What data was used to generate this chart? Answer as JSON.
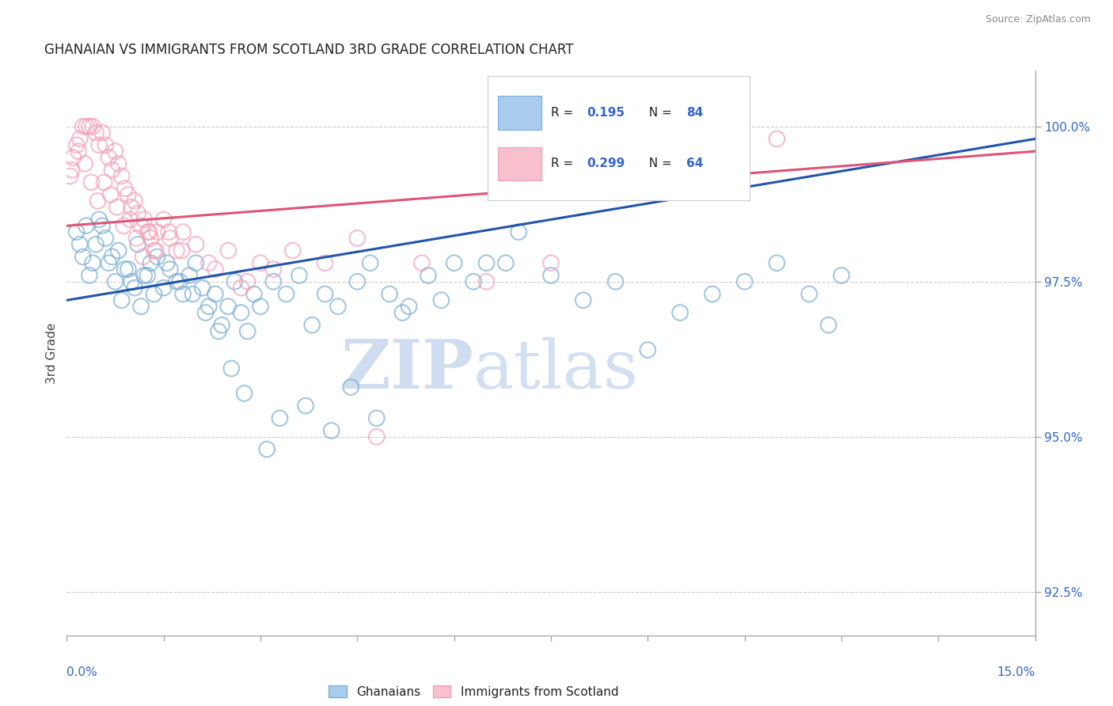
{
  "title": "GHANAIAN VS IMMIGRANTS FROM SCOTLAND 3RD GRADE CORRELATION CHART",
  "source_text": "Source: ZipAtlas.com",
  "ylabel": "3rd Grade",
  "xmin": 0.0,
  "xmax": 15.0,
  "ymin": 91.8,
  "ymax": 100.9,
  "legend_labels": [
    "Ghanaians",
    "Immigrants from Scotland"
  ],
  "blue_color": "#7bafd4",
  "pink_color": "#f4a0b8",
  "blue_line_color": "#2255aa",
  "pink_line_color": "#dd5577",
  "label_color": "#3366cc",
  "blue_scatter_x": [
    0.2,
    0.3,
    0.4,
    0.5,
    0.6,
    0.7,
    0.8,
    0.9,
    1.0,
    1.1,
    1.2,
    1.3,
    1.4,
    1.5,
    1.6,
    1.7,
    1.8,
    1.9,
    2.0,
    2.1,
    2.2,
    2.3,
    2.4,
    2.5,
    2.6,
    2.7,
    2.8,
    2.9,
    3.0,
    3.2,
    3.4,
    3.6,
    3.8,
    4.0,
    4.2,
    4.5,
    4.7,
    5.0,
    5.3,
    5.6,
    6.0,
    6.3,
    6.5,
    6.8,
    7.0,
    7.5,
    8.0,
    8.5,
    9.0,
    9.5,
    10.0,
    10.5,
    11.0,
    11.5,
    12.0,
    0.15,
    0.25,
    0.35,
    0.45,
    0.55,
    0.65,
    0.75,
    0.85,
    0.95,
    1.05,
    1.15,
    1.25,
    1.35,
    1.55,
    1.75,
    1.95,
    2.15,
    2.35,
    2.55,
    2.75,
    3.1,
    3.3,
    3.7,
    4.1,
    4.4,
    4.8,
    5.2,
    5.8,
    11.8
  ],
  "blue_scatter_y": [
    98.1,
    98.4,
    97.8,
    98.5,
    98.2,
    97.9,
    98.0,
    97.7,
    97.5,
    98.1,
    97.6,
    97.8,
    97.9,
    97.4,
    97.7,
    97.5,
    97.3,
    97.6,
    97.8,
    97.4,
    97.1,
    97.3,
    96.8,
    97.1,
    97.5,
    97.0,
    96.7,
    97.3,
    97.1,
    97.5,
    97.3,
    97.6,
    96.8,
    97.3,
    97.1,
    97.5,
    97.8,
    97.3,
    97.1,
    97.6,
    97.8,
    97.5,
    97.8,
    97.8,
    98.3,
    97.6,
    97.2,
    97.5,
    96.4,
    97.0,
    97.3,
    97.5,
    97.8,
    97.3,
    97.6,
    98.3,
    97.9,
    97.6,
    98.1,
    98.4,
    97.8,
    97.5,
    97.2,
    97.7,
    97.4,
    97.1,
    97.6,
    97.3,
    97.8,
    97.5,
    97.3,
    97.0,
    96.7,
    96.1,
    95.7,
    94.8,
    95.3,
    95.5,
    95.1,
    95.8,
    95.3,
    97.0,
    97.2,
    96.8
  ],
  "pink_scatter_x": [
    0.05,
    0.1,
    0.15,
    0.2,
    0.25,
    0.3,
    0.35,
    0.4,
    0.45,
    0.5,
    0.55,
    0.6,
    0.65,
    0.7,
    0.75,
    0.8,
    0.85,
    0.9,
    0.95,
    1.0,
    1.05,
    1.1,
    1.15,
    1.2,
    1.25,
    1.3,
    1.35,
    1.4,
    1.5,
    1.6,
    1.7,
    1.8,
    2.0,
    2.2,
    2.5,
    2.8,
    3.0,
    3.5,
    4.0,
    4.5,
    5.5,
    6.5,
    7.5,
    11.0,
    0.08,
    0.18,
    0.28,
    0.38,
    0.48,
    0.58,
    0.68,
    0.78,
    0.88,
    0.98,
    1.08,
    1.18,
    1.28,
    1.38,
    1.58,
    1.78,
    2.3,
    2.7,
    3.2,
    4.8
  ],
  "pink_scatter_y": [
    99.2,
    99.5,
    99.7,
    99.8,
    100.0,
    100.0,
    100.0,
    100.0,
    99.9,
    99.7,
    99.9,
    99.7,
    99.5,
    99.3,
    99.6,
    99.4,
    99.2,
    99.0,
    98.9,
    98.7,
    98.8,
    98.6,
    98.4,
    98.5,
    98.3,
    98.2,
    98.0,
    98.3,
    98.5,
    98.2,
    98.0,
    98.3,
    98.1,
    97.8,
    98.0,
    97.5,
    97.8,
    98.0,
    97.8,
    98.2,
    97.8,
    97.5,
    97.8,
    99.8,
    99.3,
    99.6,
    99.4,
    99.1,
    98.8,
    99.1,
    98.9,
    98.7,
    98.4,
    98.5,
    98.2,
    97.9,
    98.3,
    98.0,
    98.3,
    98.0,
    97.7,
    97.4,
    97.7,
    95.0
  ],
  "blue_trend_x0": 0.0,
  "blue_trend_y0": 97.2,
  "blue_trend_x1": 15.0,
  "blue_trend_y1": 99.8,
  "pink_trend_x0": 0.0,
  "pink_trend_y0": 98.4,
  "pink_trend_x1": 15.0,
  "pink_trend_y1": 99.6,
  "yticks": [
    92.5,
    95.0,
    97.5,
    100.0
  ],
  "background_color": "#ffffff",
  "watermark_zip": "ZIP",
  "watermark_atlas": "atlas"
}
